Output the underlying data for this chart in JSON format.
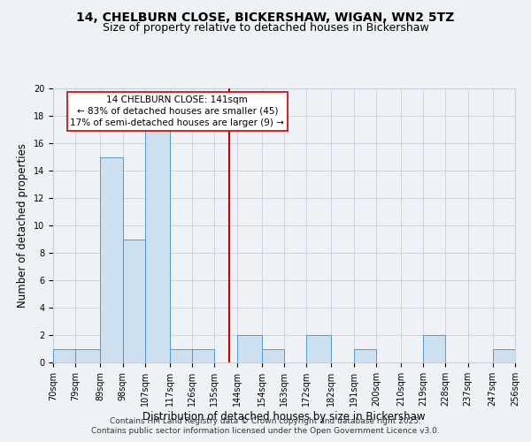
{
  "title": "14, CHELBURN CLOSE, BICKERSHAW, WIGAN, WN2 5TZ",
  "subtitle": "Size of property relative to detached houses in Bickershaw",
  "xlabel": "Distribution of detached houses by size in Bickershaw",
  "ylabel": "Number of detached properties",
  "bin_edges": [
    70,
    79,
    89,
    98,
    107,
    117,
    126,
    135,
    144,
    154,
    163,
    172,
    182,
    191,
    200,
    210,
    219,
    228,
    237,
    247,
    256
  ],
  "counts": [
    1,
    1,
    15,
    9,
    17,
    1,
    1,
    0,
    2,
    1,
    0,
    2,
    0,
    1,
    0,
    0,
    2,
    0,
    0,
    1
  ],
  "bar_color": "#cce0f0",
  "bar_edge_color": "#5599cc",
  "vline_x": 141,
  "vline_color": "#cc0000",
  "annotation_line1": "14 CHELBURN CLOSE: 141sqm",
  "annotation_line2": "← 83% of detached houses are smaller (45)",
  "annotation_line3": "17% of semi-detached houses are larger (9) →",
  "ylim": [
    0,
    20
  ],
  "yticks": [
    0,
    2,
    4,
    6,
    8,
    10,
    12,
    14,
    16,
    18,
    20
  ],
  "tick_labels": [
    "70sqm",
    "79sqm",
    "89sqm",
    "98sqm",
    "107sqm",
    "117sqm",
    "126sqm",
    "135sqm",
    "144sqm",
    "154sqm",
    "163sqm",
    "172sqm",
    "182sqm",
    "191sqm",
    "200sqm",
    "210sqm",
    "219sqm",
    "228sqm",
    "237sqm",
    "247sqm",
    "256sqm"
  ],
  "footer_line1": "Contains HM Land Registry data © Crown copyright and database right 2025.",
  "footer_line2": "Contains public sector information licensed under the Open Government Licence v3.0.",
  "bg_color": "#eef2f7",
  "grid_color": "#c8cfd8",
  "title_fontsize": 10,
  "subtitle_fontsize": 9,
  "axis_label_fontsize": 8.5,
  "tick_fontsize": 7,
  "annotation_fontsize": 7.5,
  "footer_fontsize": 6.5
}
